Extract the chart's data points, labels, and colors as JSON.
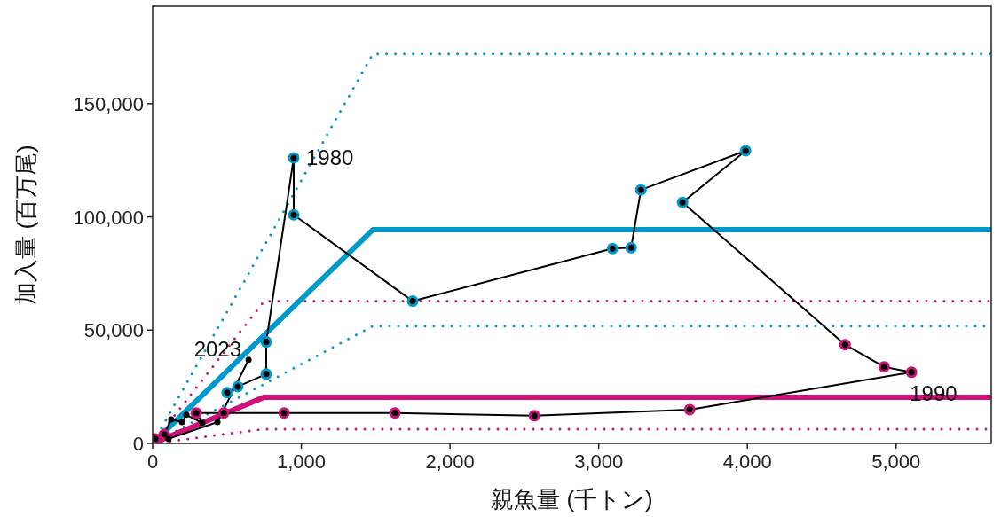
{
  "chart_data": {
    "type": "line",
    "xlabel": "親魚量 (千トン)",
    "ylabel": "加入量 (百万尾)",
    "xlim": [
      0,
      5640
    ],
    "ylim": [
      0,
      193000
    ],
    "xticks": [
      0,
      {
        "value": 1000,
        "label": "1,000"
      },
      {
        "value": 2000,
        "label": "2,000"
      },
      {
        "value": 3000,
        "label": "3,000"
      },
      {
        "value": 4000,
        "label": "4,000"
      },
      {
        "value": 5000,
        "label": "5,000"
      }
    ],
    "yticks": [
      0,
      {
        "value": 50000,
        "label": "50,000"
      },
      {
        "value": 100000,
        "label": "100,000"
      },
      {
        "value": 150000,
        "label": "150,000"
      }
    ],
    "series": [
      {
        "color": "#0099cc",
        "line_style": "dotted",
        "x": [
          0,
          1481,
          5640
        ],
        "values": [
          0,
          172000,
          172000
        ]
      },
      {
        "color": "#0099cc",
        "line_style": "dotted",
        "x": [
          0,
          1481,
          5640
        ],
        "values": [
          0,
          51800,
          51800
        ]
      },
      {
        "color": "#cc1177",
        "line_style": "dotted",
        "x": [
          0,
          750,
          5640
        ],
        "values": [
          0,
          62800,
          62800
        ]
      },
      {
        "color": "#cc1177",
        "line_style": "dotted",
        "x": [
          0,
          750,
          5640
        ],
        "values": [
          0,
          6300,
          6300
        ]
      },
      {
        "color": "#0099cc",
        "line_style": "solid",
        "x": [
          0,
          1481,
          5640
        ],
        "values": [
          0,
          94300,
          94300
        ]
      },
      {
        "color": "#cc1177",
        "line_style": "solid",
        "x": [
          0,
          750,
          5640
        ],
        "values": [
          0,
          20400,
          20400
        ]
      },
      {
        "color": "#000000",
        "line_style": "solid",
        "marker": "circle",
        "x": [
          501,
          573,
          764,
          764,
          949,
          949,
          1749,
          3093,
          3218,
          3284,
          3988,
          3564,
          4657,
          4919,
          5104,
          3612,
          2567,
          1630,
          884,
          478,
          293,
          334,
          227,
          197,
          125,
          78,
          18,
          107,
          436,
          645
        ],
        "values": [
          22400,
          25100,
          30600,
          44800,
          126100,
          100900,
          62800,
          86000,
          86400,
          111900,
          129200,
          106400,
          43600,
          33800,
          31400,
          14900,
          12200,
          13400,
          13400,
          13400,
          13400,
          9000,
          12600,
          9400,
          10600,
          3900,
          2000,
          2000,
          9400,
          36900
        ],
        "colors": [
          "#0099cc",
          "#0099cc",
          "#0099cc",
          "#0099cc",
          "#0099cc",
          "#0099cc",
          "#0099cc",
          "#0099cc",
          "#0099cc",
          "#0099cc",
          "#0099cc",
          "#0099cc",
          "#cc1177",
          "#cc1177",
          "#cc1177",
          "#cc1177",
          "#cc1177",
          "#cc1177",
          "#cc1177",
          "#cc1177",
          "#cc1177",
          null,
          null,
          null,
          null,
          "#cc1177",
          "#cc1177",
          null,
          null,
          null
        ]
      }
    ],
    "annotations": [
      {
        "text": "1980",
        "x": 949,
        "y": 126100
      },
      {
        "text": "1990",
        "x": 5104,
        "y": 31400
      },
      {
        "text": "2023",
        "x": 645,
        "y": 36900
      }
    ]
  }
}
